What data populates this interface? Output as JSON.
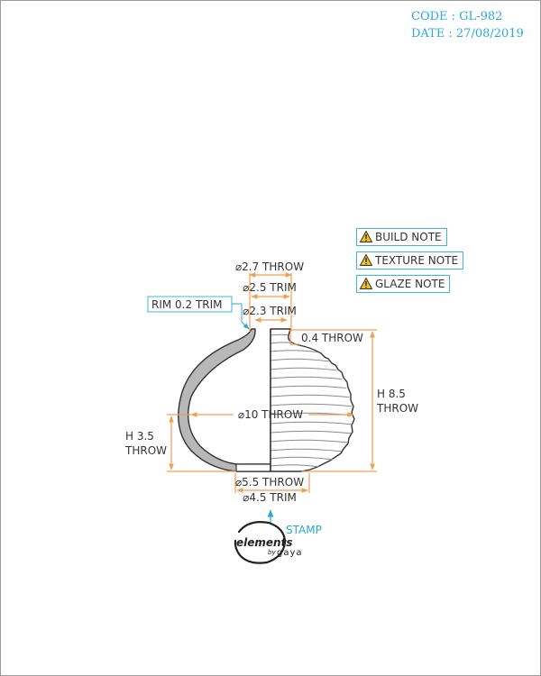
{
  "header": {
    "code": "CODE : GL-982",
    "date": "DATE : 27/08/2019"
  },
  "notes": [
    {
      "label": "BUILD NOTE",
      "icon": "warning-icon"
    },
    {
      "label": "TEXTURE NOTE",
      "icon": "warning-icon"
    },
    {
      "label": "GLAZE NOTE",
      "icon": "warning-icon"
    }
  ],
  "dimensions": {
    "rim_throw": "⌀2.7 THROW",
    "rim_trim": "⌀2.5 TRIM",
    "neck_trim": "⌀2.3 TRIM",
    "rim_callout": "RIM 0.2 TRIM",
    "wall_throw": "0.4 THROW",
    "body_throw": "⌀10 THROW",
    "height_throw_line1": "H 8.5",
    "height_throw_line2": "THROW",
    "height_trim_line1": "H 3.5",
    "height_trim_line2": "THROW",
    "base_throw": "⌀5.5 THROW",
    "base_trim": "⌀4.5 TRIM"
  },
  "stamp": {
    "label": "STAMP",
    "logo_line1": "elements",
    "logo_line2": "by",
    "logo_line3": "gaya"
  },
  "colors": {
    "accent": "#29a9d9",
    "dimension": "#f0a050",
    "outline": "#333333",
    "glaze": "#b8b8b8"
  }
}
